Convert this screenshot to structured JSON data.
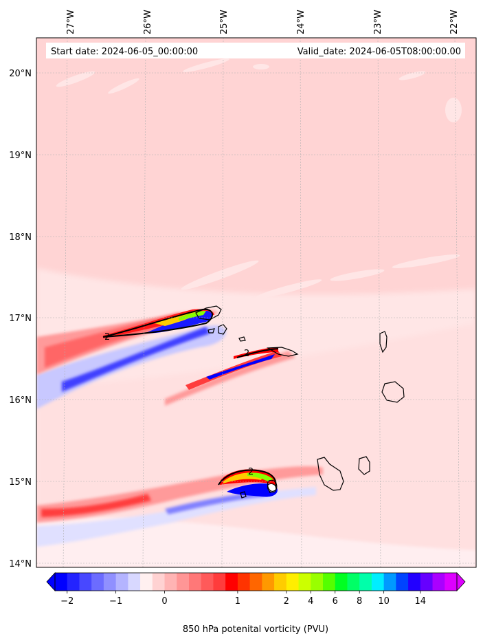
{
  "header": {
    "start_date": "Start date: 2024-06-05_00:00:00",
    "valid_date": "Valid_date: 2024-06-05T08:00:00.00"
  },
  "axes": {
    "lon_labels": [
      "27°W",
      "26°W",
      "25°W",
      "24°W",
      "23°W",
      "22°W"
    ],
    "lat_labels": [
      "20°N",
      "19°N",
      "18°N",
      "17°N",
      "16°N",
      "15°N",
      "14°N"
    ]
  },
  "colorbar": {
    "tick_labels": [
      "−2",
      "−1",
      "0",
      "1",
      "2",
      "4",
      "6",
      "8",
      "10",
      "14"
    ],
    "title": "850 hPa potenital vorticity (PVU)",
    "colors": [
      "#0000ff",
      "#2323ff",
      "#4848ff",
      "#6c6cff",
      "#9090ff",
      "#b4b4ff",
      "#d8d8ff",
      "#fff0f0",
      "#ffd2d2",
      "#ffb4b4",
      "#ff9696",
      "#ff7878",
      "#ff5a5a",
      "#ff3c3c",
      "#ff0000",
      "#ff3300",
      "#ff6600",
      "#ff9900",
      "#ffcc00",
      "#ffee00",
      "#ccff00",
      "#99ff00",
      "#55ff00",
      "#00ff22",
      "#00ff66",
      "#00ffaa",
      "#00eeff",
      "#0099ff",
      "#0044ff",
      "#2200ff",
      "#6600ff",
      "#aa00ff",
      "#dd00ff"
    ]
  },
  "contour_labels": [
    "2",
    "2",
    "2"
  ],
  "colors": {
    "background_field": "#ffd4d4",
    "light_field": "#ffe8e8",
    "coast": "#000000"
  }
}
